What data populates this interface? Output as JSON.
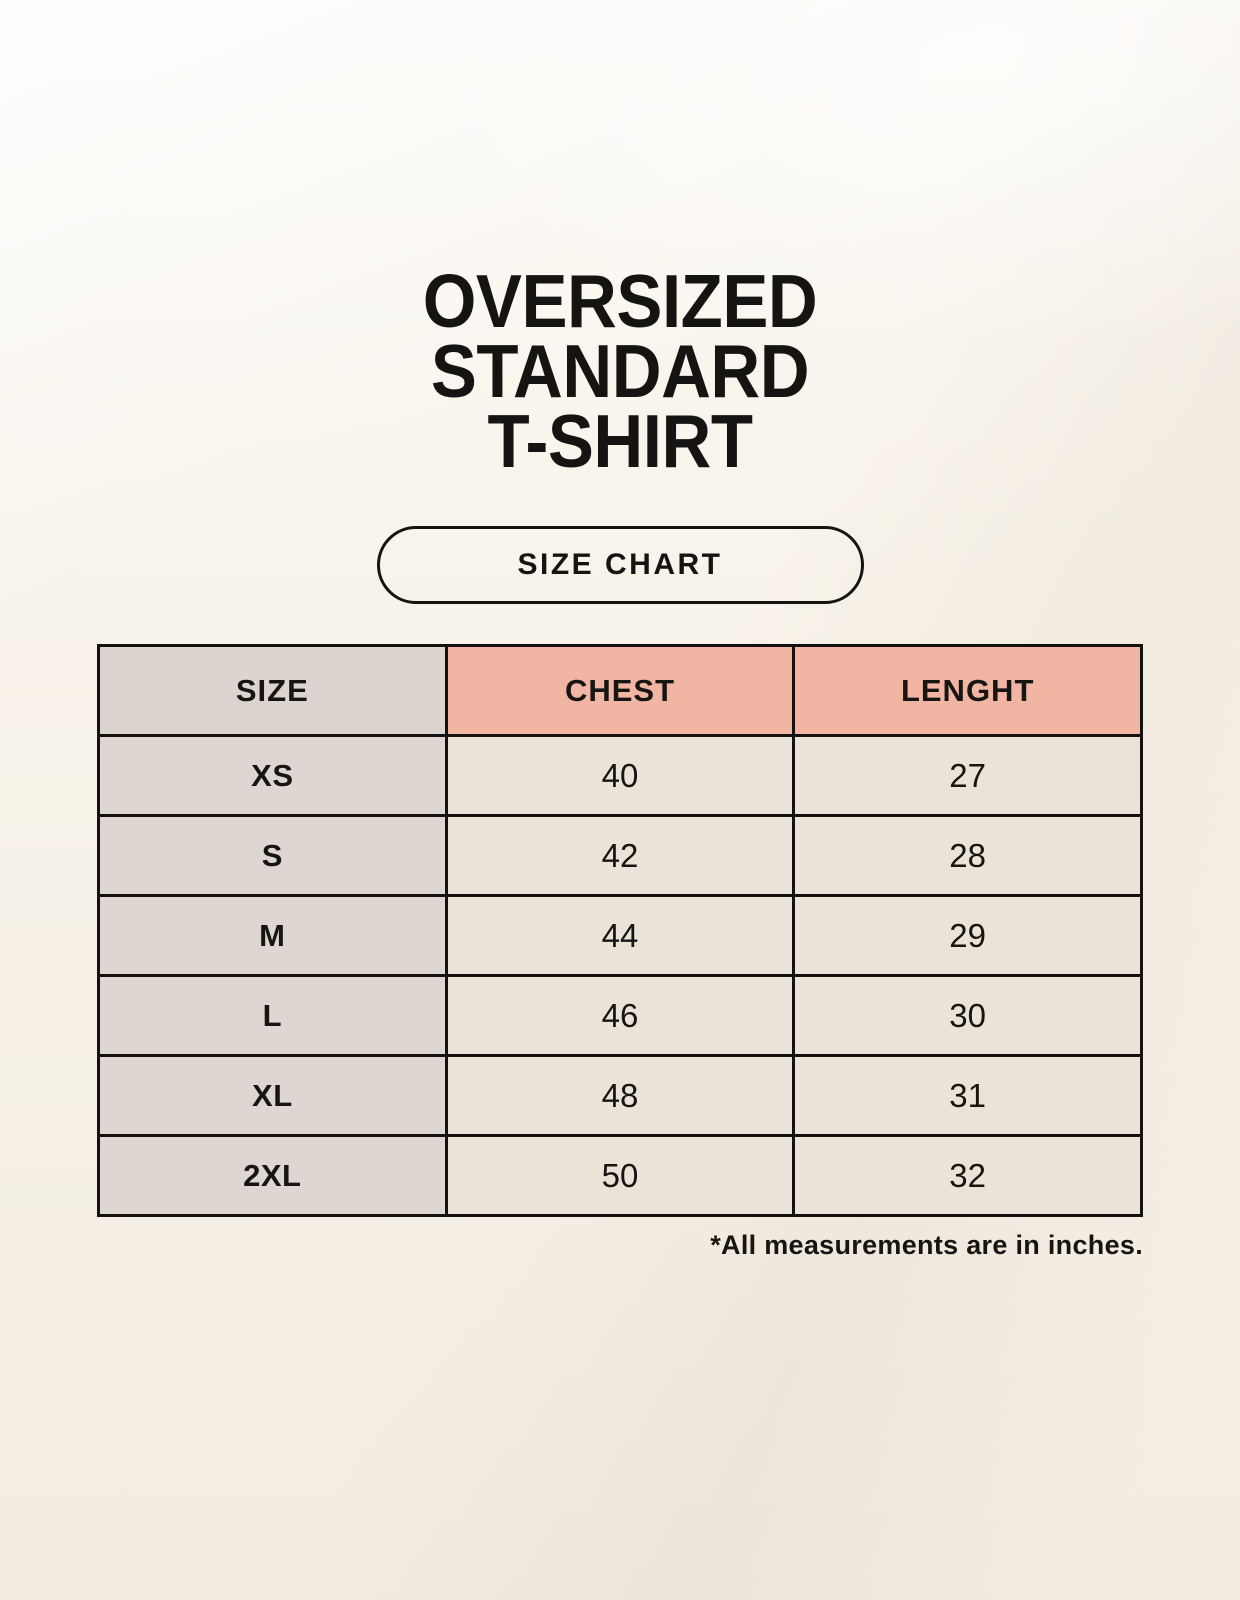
{
  "header": {
    "title_lines": [
      "OVERSIZED",
      "STANDARD",
      "T-SHIRT"
    ],
    "size_chart_label": "SIZE CHART"
  },
  "chart_data": {
    "type": "table",
    "title": "OVERSIZED STANDARD T-SHIRT",
    "subtitle": "SIZE CHART",
    "columns": [
      "SIZE",
      "CHEST",
      "LENGHT"
    ],
    "rows": [
      {
        "size": "XS",
        "chest": "40",
        "length": "27"
      },
      {
        "size": "S",
        "chest": "42",
        "length": "28"
      },
      {
        "size": "M",
        "chest": "44",
        "length": "29"
      },
      {
        "size": "L",
        "chest": "46",
        "length": "30"
      },
      {
        "size": "XL",
        "chest": "48",
        "length": "31"
      },
      {
        "size": "2XL",
        "chest": "50",
        "length": "32"
      }
    ],
    "footnote": "*All measurements are in inches.",
    "layout": "3 equal columns, header row highlighted"
  },
  "colors": {
    "page_background": "#f8f3ea",
    "header_pink": "#f1b5a3",
    "header_gray": "#dcd4ce",
    "size_column_gray": "#ddd6d1",
    "cell_cream": "#eae3d8",
    "border_black": "#141210",
    "text": "#161412"
  }
}
